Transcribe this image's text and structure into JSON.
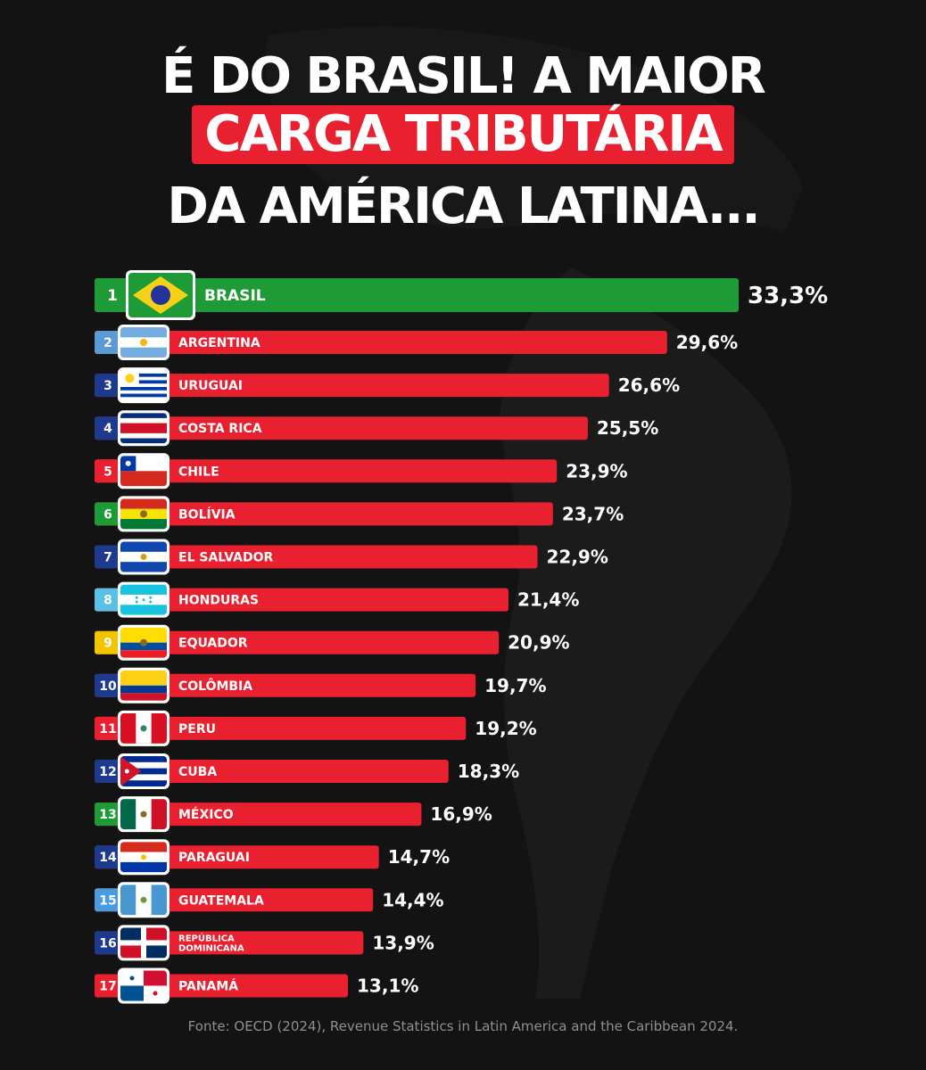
{
  "title": {
    "line1": "É DO BRASIL! A MAIOR",
    "line2": "CARGA TRIBUTÁRIA",
    "line3": "DA AMÉRICA LATINA..."
  },
  "source": "Fonte: OECD (2024), Revenue Statistics in Latin America and the Caribbean 2024.",
  "colors": {
    "highlight": "#1e9a37",
    "bar": "#e8202f",
    "background": "#131313"
  },
  "chart_data": {
    "type": "bar",
    "orientation": "horizontal",
    "title": "É DO BRASIL! A MAIOR CARGA TRIBUTÁRIA DA AMÉRICA LATINA...",
    "value_suffix": "%",
    "highlight_index": 0,
    "ranks": [
      "1",
      "2",
      "3",
      "4",
      "5",
      "6",
      "7",
      "8",
      "9",
      "10",
      "11",
      "12",
      "13",
      "14",
      "15",
      "16",
      "17"
    ],
    "rank_colors": [
      "#1e9a37",
      "#5b9bd5",
      "#1d3a8f",
      "#1d3a8f",
      "#e8202f",
      "#1e9a37",
      "#1d3a8f",
      "#5bc0e8",
      "#f2c500",
      "#1d3a8f",
      "#e8202f",
      "#1d3a8f",
      "#1e9a37",
      "#1d3a8f",
      "#4a9be0",
      "#1d3a8f",
      "#e8202f"
    ],
    "flags": [
      "brazil-flag",
      "argentina-flag",
      "uruguay-flag",
      "costa-rica-flag",
      "chile-flag",
      "bolivia-flag",
      "el-salvador-flag",
      "honduras-flag",
      "ecuador-flag",
      "colombia-flag",
      "peru-flag",
      "cuba-flag",
      "mexico-flag",
      "paraguay-flag",
      "guatemala-flag",
      "dominican-republic-flag",
      "panama-flag"
    ],
    "categories": [
      "BRASIL",
      "ARGENTINA",
      "URUGUAI",
      "COSTA RICA",
      "CHILE",
      "BOLÍVIA",
      "EL SALVADOR",
      "HONDURAS",
      "EQUADOR",
      "COLÔMBIA",
      "PERU",
      "CUBA",
      "MÉXICO",
      "PARAGUAI",
      "GUATEMALA",
      "REPÚBLICA DOMINICANA",
      "PANAMÁ"
    ],
    "values": [
      33.3,
      29.6,
      26.6,
      25.5,
      23.9,
      23.7,
      22.9,
      21.4,
      20.9,
      19.7,
      19.2,
      18.3,
      16.9,
      14.7,
      14.4,
      13.9,
      13.1
    ],
    "value_labels": [
      "33,3%",
      "29,6%",
      "26,6%",
      "25,5%",
      "23,9%",
      "23,7%",
      "22,9%",
      "21,4%",
      "20,9%",
      "19,7%",
      "19,2%",
      "18,3%",
      "16,9%",
      "14,7%",
      "14,4%",
      "13,9%",
      "13,1%"
    ]
  }
}
